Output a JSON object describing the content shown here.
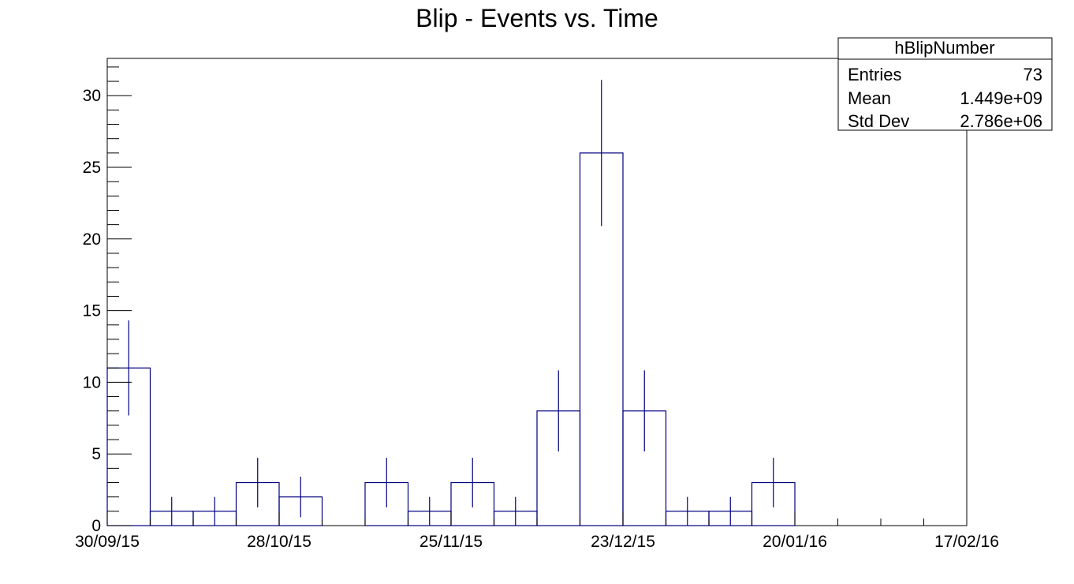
{
  "chart_data": {
    "type": "histogram",
    "title": "Blip - Events vs. Time",
    "xlabel": "",
    "ylabel": "",
    "x_tick_labels": [
      "30/09/15",
      "28/10/15",
      "25/11/15",
      "23/12/15",
      "20/01/16",
      "17/02/16"
    ],
    "y_ticks": [
      0,
      5,
      10,
      15,
      20,
      25,
      30
    ],
    "ylim": [
      0,
      32.6
    ],
    "bin_edges": [
      "30/09/15",
      "07/10/15",
      "14/10/15",
      "21/10/15",
      "28/10/15",
      "04/11/15",
      "11/11/15",
      "18/11/15",
      "25/11/15",
      "02/12/15",
      "09/12/15",
      "16/12/15",
      "23/12/15",
      "30/12/15",
      "06/01/16",
      "13/01/16",
      "20/01/16",
      "27/01/16",
      "03/02/16",
      "10/02/16",
      "17/02/16"
    ],
    "values": [
      11,
      1,
      1,
      3,
      2,
      0,
      3,
      1,
      3,
      1,
      8,
      26,
      8,
      1,
      1,
      3,
      0,
      0,
      0,
      0
    ],
    "error_bars": "sqrt(N)",
    "line_color": "#000080",
    "grid": false,
    "stats_box": {
      "title": "hBlipNumber",
      "rows": [
        {
          "label": "Entries",
          "value": "73"
        },
        {
          "label": "Mean",
          "value": "1.449e+09"
        },
        {
          "label": "Std Dev",
          "value": "2.786e+06"
        }
      ],
      "placement": "top-right"
    }
  }
}
